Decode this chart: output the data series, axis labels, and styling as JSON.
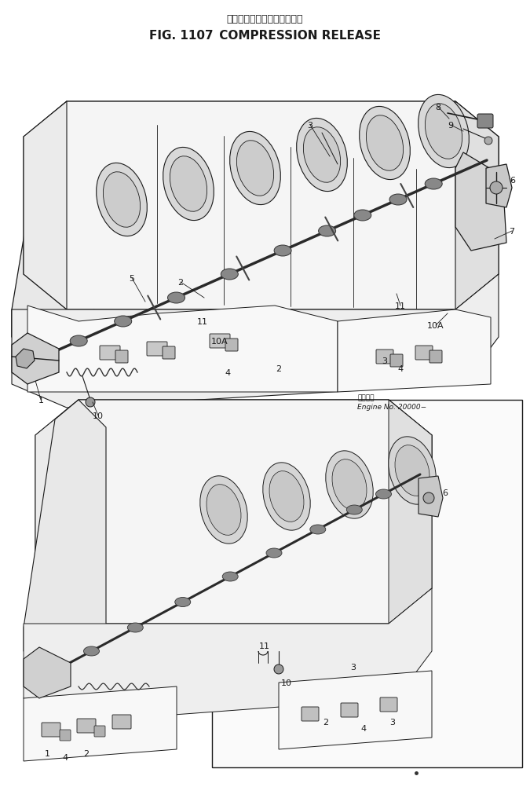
{
  "title_japanese": "コンプレッション　リリース",
  "title_english": "FIG. 1107 COMPRESSION RELEASE",
  "engine_note_jp": "適用号地",
  "engine_note_en": "Engine No. 20000−",
  "bg": "#ffffff",
  "lc": "#1a1a1a",
  "fig_width": 6.75,
  "fig_height": 10.03,
  "dpi": 100
}
